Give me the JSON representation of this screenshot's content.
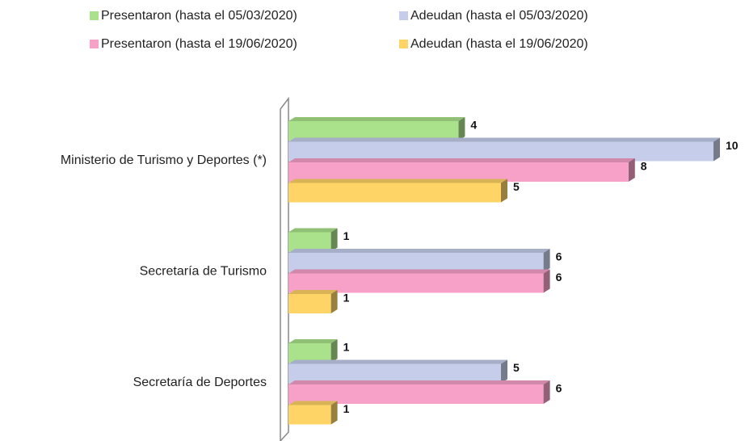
{
  "chart_data": {
    "type": "bar",
    "orientation": "horizontal",
    "categories": [
      "Ministerio de Turismo y Deportes (*)",
      "Secretaría de Turismo",
      "Secretaría de Deportes"
    ],
    "series": [
      {
        "name": "Presentaron (hasta el 05/03/2020)",
        "color": "#a9e28a",
        "values": [
          4,
          1,
          1
        ]
      },
      {
        "name": "Adeudan (hasta el 05/03/2020)",
        "color": "#c5cdea",
        "values": [
          10,
          6,
          5
        ]
      },
      {
        "name": "Presentaron (hasta el 19/06/2020)",
        "color": "#f7a0c8",
        "values": [
          8,
          6,
          6
        ]
      },
      {
        "name": "Adeudan (hasta el 19/06/2020)",
        "color": "#ffd466",
        "values": [
          5,
          1,
          1
        ]
      }
    ],
    "xlim": [
      0,
      10
    ],
    "legend": "top"
  }
}
